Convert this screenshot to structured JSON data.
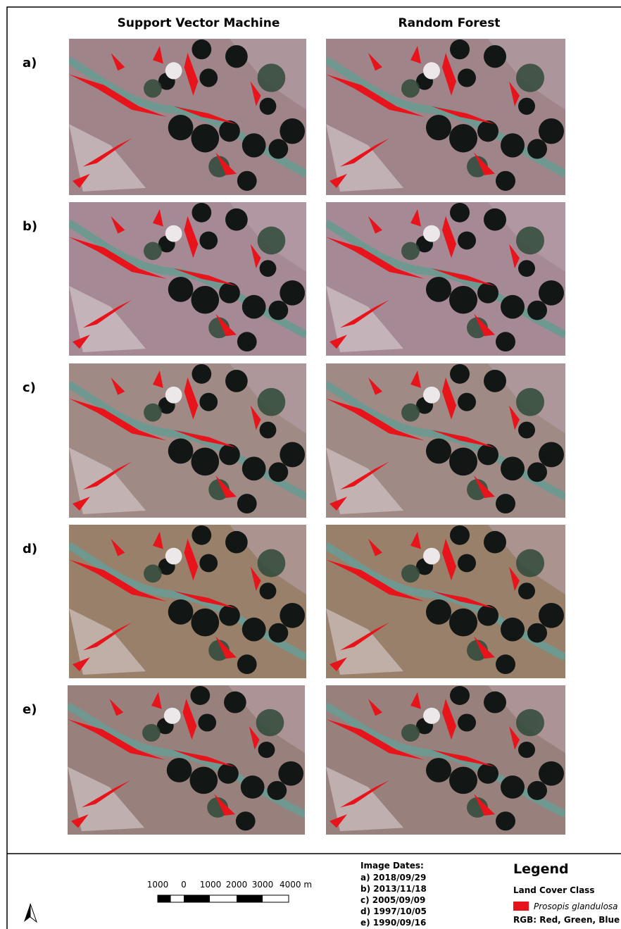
{
  "columns": [
    "Support Vector Machine",
    "Random Forest"
  ],
  "rows": [
    "a)",
    "b)",
    "c)",
    "d)",
    "e)"
  ],
  "scale_bar": {
    "labels": [
      "1000",
      "0",
      "1000",
      "2000",
      "3000",
      "4000 m"
    ]
  },
  "image_dates": {
    "title": "Image Dates:",
    "items": [
      "a) 2018/09/29",
      "b) 2013/11/18",
      "c) 2005/09/09",
      "d) 1997/10/05",
      "e) 1990/09/16"
    ]
  },
  "legend": {
    "title": "Legend",
    "subtitle": "Land Cover Class",
    "class": "Prosopis glandulosa",
    "rgb": "RGB: Red, Green, Blue"
  }
}
